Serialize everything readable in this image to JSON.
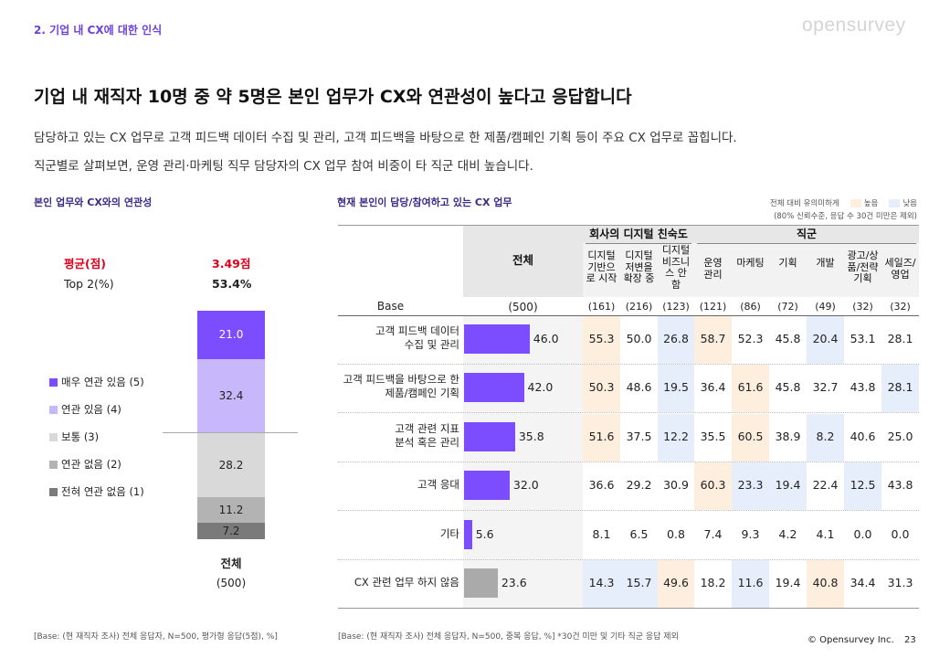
{
  "section_label": "2. 기업 내 CX에 대한 인식",
  "brand": "opensurvey",
  "headline": "기업 내 재직자 10명 중 약 5명은 본인 업무가 CX와 연관성이 높다고 응답합니다",
  "desc1": "담당하고 있는 CX 업무로 고객 피드백 데이터 수집 및 관리, 고객 피드백을 바탕으로 한 제품/캠페인 기획 등이 주요 CX 업무로 꼽힙니다.",
  "desc2": "직군별로 살펴보면, 운영 관리·마케팅 직무 담당자의 CX 업무 참여 비중이 타 직군 대비 높습니다.",
  "left_title": "본인 업무와 CX와의 연관성",
  "right_title": "현재 본인이 담당/참여하고 있는 CX 업무",
  "legend_note": {
    "prefix": "전체 대비 유의미하게",
    "high": "높음",
    "low": "낮음",
    "line2": "(80% 신뢰수준, 응답 수 30건 미만은 제외)",
    "high_color": "#fdeedd",
    "low_color": "#e6eefc"
  },
  "summary": {
    "avg_label": "평균(점)",
    "avg_value": "3.49점",
    "top2_label": "Top 2(%)",
    "top2_value": "53.4%"
  },
  "stack": {
    "column_label": "전체",
    "base": "(500)",
    "segments": [
      {
        "label": "매우 연관 있음 (5)",
        "value": 21.0,
        "display": "21.0",
        "color": "#7c4dff",
        "text_color": "#ffffff"
      },
      {
        "label": "연관 있음 (4)",
        "value": 32.4,
        "display": "32.4",
        "color": "#c8b8fb",
        "text_color": "#222222"
      },
      {
        "label": "보통 (3)",
        "value": 28.2,
        "display": "28.2",
        "color": "#d9d9d9",
        "text_color": "#222222"
      },
      {
        "label": "연관 없음 (2)",
        "value": 11.2,
        "display": "11.2",
        "color": "#b3b3b3",
        "text_color": "#222222"
      },
      {
        "label": "전혀 연관 없음 (1)",
        "value": 7.2,
        "display": "7.2",
        "color": "#7a7a7a",
        "text_color": "#222222"
      }
    ]
  },
  "table": {
    "group_headers": [
      "회사의 디지털 친숙도",
      "직군"
    ],
    "total_header": "전체",
    "base_label": "Base",
    "columns": [
      {
        "label": "전체",
        "base": "(500)"
      },
      {
        "label": "디지털\n기반으\n로 시작",
        "base": "(161)"
      },
      {
        "label": "디지털\n저변을\n확장 중",
        "base": "(216)"
      },
      {
        "label": "디지털\n비즈니\n스 안\n함",
        "base": "(123)"
      },
      {
        "label": "운영\n관리",
        "base": "(121)"
      },
      {
        "label": "마케팅",
        "base": "(86)"
      },
      {
        "label": "기획",
        "base": "(72)"
      },
      {
        "label": "개발",
        "base": "(49)"
      },
      {
        "label": "광고/상\n품/전략\n기획",
        "base": "(32)"
      },
      {
        "label": "세일즈/\n영업",
        "base": "(32)"
      }
    ],
    "rows": [
      {
        "label": "고객 피드백 데이터\n수집 및 관리",
        "total": 46.0,
        "total_display": "46.0",
        "bar_color": "#7c4dff",
        "values": [
          "55.3",
          "50.0",
          "26.8",
          "58.7",
          "52.3",
          "45.8",
          "20.4",
          "53.1",
          "28.1"
        ],
        "sig": [
          "high",
          "",
          "low",
          "high",
          "",
          "",
          "low",
          "",
          ""
        ]
      },
      {
        "label": "고객 피드백을 바탕으로 한\n제품/캠페인 기획",
        "total": 42.0,
        "total_display": "42.0",
        "bar_color": "#7c4dff",
        "values": [
          "50.3",
          "48.6",
          "19.5",
          "36.4",
          "61.6",
          "45.8",
          "32.7",
          "43.8",
          "28.1"
        ],
        "sig": [
          "high",
          "",
          "low",
          "",
          "high",
          "",
          "",
          "",
          "low"
        ]
      },
      {
        "label": "고객 관련 지표\n분석 혹은 관리",
        "total": 35.8,
        "total_display": "35.8",
        "bar_color": "#7c4dff",
        "values": [
          "51.6",
          "37.5",
          "12.2",
          "35.5",
          "60.5",
          "38.9",
          "8.2",
          "40.6",
          "25.0"
        ],
        "sig": [
          "high",
          "",
          "low",
          "",
          "high",
          "",
          "low",
          "",
          ""
        ]
      },
      {
        "label": "고객 응대",
        "total": 32.0,
        "total_display": "32.0",
        "bar_color": "#7c4dff",
        "values": [
          "36.6",
          "29.2",
          "30.9",
          "60.3",
          "23.3",
          "19.4",
          "22.4",
          "12.5",
          "43.8"
        ],
        "sig": [
          "",
          "",
          "",
          "high",
          "low",
          "low",
          "",
          "low",
          ""
        ]
      },
      {
        "label": "기타",
        "total": 5.6,
        "total_display": "5.6",
        "bar_color": "#7c4dff",
        "values": [
          "8.1",
          "6.5",
          "0.8",
          "7.4",
          "9.3",
          "4.2",
          "4.1",
          "0.0",
          "0.0"
        ],
        "sig": [
          "",
          "",
          "",
          "",
          "",
          "",
          "",
          "",
          ""
        ]
      },
      {
        "label": "CX 관련 업무 하지 않음",
        "total": 23.6,
        "total_display": "23.6",
        "bar_color": "#aaaaaa",
        "values": [
          "14.3",
          "15.7",
          "49.6",
          "18.2",
          "11.6",
          "19.4",
          "40.8",
          "34.4",
          "31.3"
        ],
        "sig": [
          "low",
          "low",
          "high",
          "",
          "low",
          "",
          "high",
          "",
          ""
        ]
      }
    ]
  },
  "footer_left": "[Base: (현 재직자 조사) 전체 응답자, N=500, 평가형 응답(5점), %]",
  "footer_right": "[Base: (현 재직자 조사) 전체 응답자, N=500, 중복 응답, %] *30건 미만 및 기타 직군 응답 제외",
  "copyright": "© Opensurvey Inc.",
  "page_number": "23"
}
